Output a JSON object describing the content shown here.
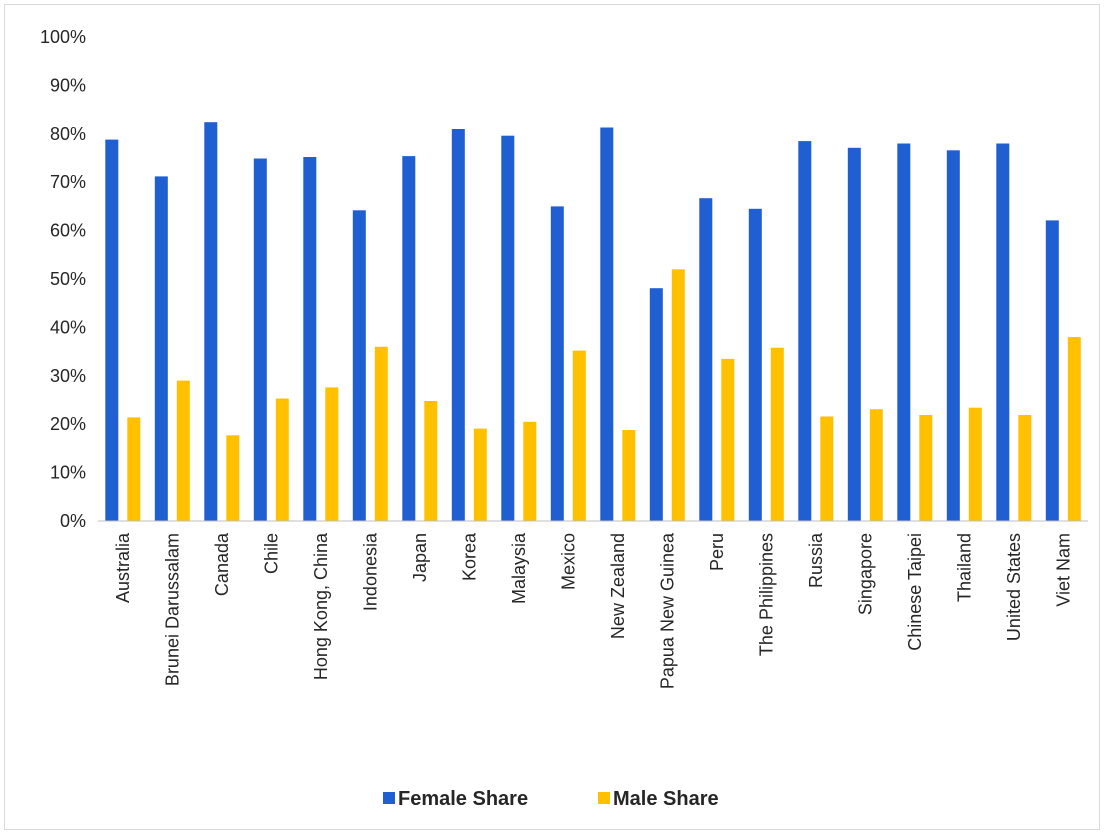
{
  "chart_data": {
    "type": "bar",
    "categories": [
      "Australia",
      "Brunei Darussalam",
      "Canada",
      "Chile",
      "Hong Kong, China",
      "Indonesia",
      "Japan",
      "Korea",
      "Malaysia",
      "Mexico",
      "New Zealand",
      "Papua New Guinea",
      "Peru",
      "The Philippines",
      "Russia",
      "Singapore",
      "Chinese Taipei",
      "Thailand",
      "United States",
      "Viet Nam"
    ],
    "series": [
      {
        "name": "Female Share",
        "color": "#1f5fd1",
        "values": [
          78.8,
          71.2,
          82.4,
          74.9,
          75.2,
          64.2,
          75.4,
          81.0,
          79.6,
          65.0,
          81.3,
          48.1,
          66.7,
          64.5,
          78.5,
          77.1,
          78.0,
          76.6,
          78.0,
          62.1
        ]
      },
      {
        "name": "Male Share",
        "color": "#ffc000",
        "values": [
          21.4,
          29.0,
          17.7,
          25.3,
          27.6,
          36.0,
          24.8,
          19.1,
          20.5,
          35.2,
          18.8,
          52.0,
          33.5,
          35.8,
          21.6,
          23.1,
          21.9,
          23.4,
          21.9,
          38.0
        ]
      }
    ],
    "y_ticks": [
      "0%",
      "10%",
      "20%",
      "30%",
      "40%",
      "50%",
      "60%",
      "70%",
      "80%",
      "90%",
      "100%"
    ],
    "ylim": [
      0,
      100
    ],
    "grid": false,
    "legend_position": "bottom"
  }
}
